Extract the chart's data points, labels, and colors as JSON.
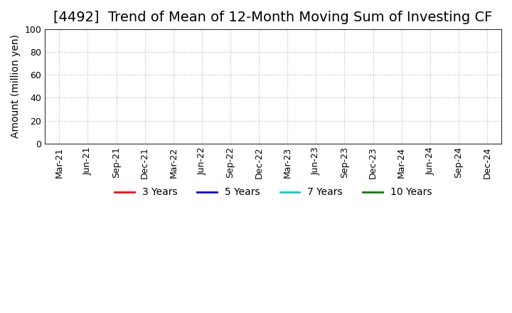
{
  "title": "[4492]  Trend of Mean of 12-Month Moving Sum of Investing CF",
  "ylabel": "Amount (million yen)",
  "ylim": [
    0,
    100
  ],
  "yticks": [
    0,
    20,
    40,
    60,
    80,
    100
  ],
  "x_labels": [
    "Mar-21",
    "Jun-21",
    "Sep-21",
    "Dec-21",
    "Mar-22",
    "Jun-22",
    "Sep-22",
    "Dec-22",
    "Mar-23",
    "Jun-23",
    "Sep-23",
    "Dec-23",
    "Mar-24",
    "Jun-24",
    "Sep-24",
    "Dec-24"
  ],
  "legend_entries": [
    {
      "label": "3 Years",
      "color": "#FF0000"
    },
    {
      "label": "5 Years",
      "color": "#0000CC"
    },
    {
      "label": "7 Years",
      "color": "#00CCCC"
    },
    {
      "label": "10 Years",
      "color": "#008000"
    }
  ],
  "background_color": "#FFFFFF",
  "grid_color": "#BBBBBB",
  "title_fontsize": 14,
  "axis_label_fontsize": 10,
  "tick_fontsize": 9,
  "legend_fontsize": 10
}
